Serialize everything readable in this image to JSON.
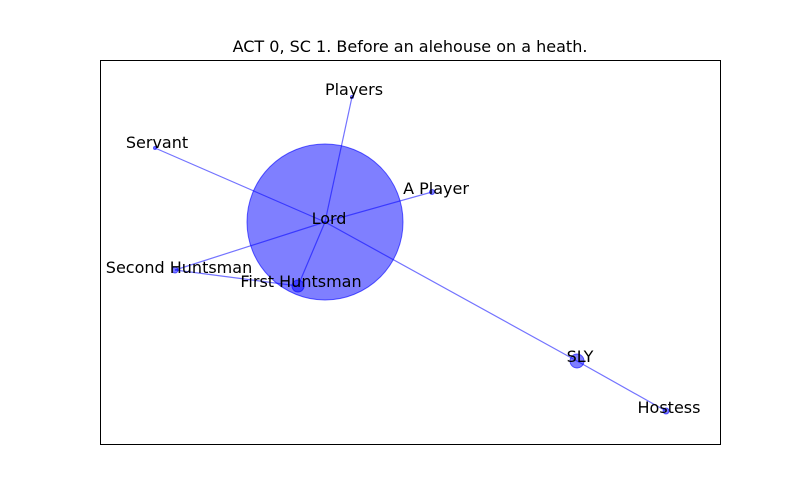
{
  "title": "ACT 0, SC 1. Before an alehouse on a heath.",
  "colors": {
    "node": "#0000ff",
    "edge": "#0000ff",
    "frame": "#000000"
  },
  "nodes": [
    {
      "id": "lord",
      "label": "Lord",
      "weight": 1.0
    },
    {
      "id": "players",
      "label": "Players",
      "weight": 0.02
    },
    {
      "id": "a-player",
      "label": "A Player",
      "weight": 0.03
    },
    {
      "id": "servant",
      "label": "Servant",
      "weight": 0.02
    },
    {
      "id": "second-huntsman",
      "label": "Second Huntsman",
      "weight": 0.03
    },
    {
      "id": "first-huntsman",
      "label": "First Huntsman",
      "weight": 0.08
    },
    {
      "id": "sly",
      "label": "SLY",
      "weight": 0.1
    },
    {
      "id": "hostess",
      "label": "Hostess",
      "weight": 0.03
    }
  ],
  "edges": [
    [
      "lord",
      "players"
    ],
    [
      "lord",
      "a-player"
    ],
    [
      "lord",
      "servant"
    ],
    [
      "lord",
      "second-huntsman"
    ],
    [
      "lord",
      "first-huntsman"
    ],
    [
      "lord",
      "sly"
    ],
    [
      "second-huntsman",
      "first-huntsman"
    ],
    [
      "sly",
      "hostess"
    ]
  ]
}
